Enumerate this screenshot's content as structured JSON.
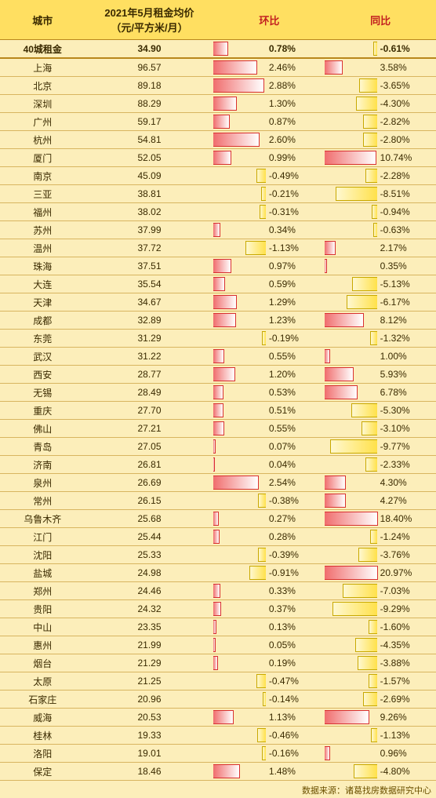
{
  "rent_table": {
    "background_color": "#fceeba",
    "header_bg": "#ffdf61",
    "header_color": "#c22020",
    "grid_color": "#d8b560",
    "pos_bar_color": "#f06d6d",
    "neg_bar_color": "#ffe14a",
    "fontsize": 12,
    "header_fontsize": 13,
    "columns": {
      "city": "城市",
      "price": "2021年5月租金均价\n（元/平方米/月）",
      "mom": "环比",
      "yoy": "同比"
    },
    "summary": {
      "city": "40城租金",
      "price": "34.90",
      "mom": 0.78,
      "yoy": -0.61
    },
    "mom_scale": 3.0,
    "yoy_scale": 11.0,
    "rows": [
      {
        "city": "上海",
        "price": "96.57",
        "mom": 2.46,
        "yoy": 3.58
      },
      {
        "city": "北京",
        "price": "89.18",
        "mom": 2.88,
        "yoy": -3.65
      },
      {
        "city": "深圳",
        "price": "88.29",
        "mom": 1.3,
        "yoy": -4.3
      },
      {
        "city": "广州",
        "price": "59.17",
        "mom": 0.87,
        "yoy": -2.82
      },
      {
        "city": "杭州",
        "price": "54.81",
        "mom": 2.6,
        "yoy": -2.8
      },
      {
        "city": "厦门",
        "price": "52.05",
        "mom": 0.99,
        "yoy": 10.74
      },
      {
        "city": "南京",
        "price": "45.09",
        "mom": -0.49,
        "yoy": -2.28
      },
      {
        "city": "三亚",
        "price": "38.81",
        "mom": -0.21,
        "yoy": -8.51
      },
      {
        "city": "福州",
        "price": "38.02",
        "mom": -0.31,
        "yoy": -0.94
      },
      {
        "city": "苏州",
        "price": "37.99",
        "mom": 0.34,
        "yoy": -0.63
      },
      {
        "city": "温州",
        "price": "37.72",
        "mom": -1.13,
        "yoy": 2.17
      },
      {
        "city": "珠海",
        "price": "37.51",
        "mom": 0.97,
        "yoy": 0.35
      },
      {
        "city": "大连",
        "price": "35.54",
        "mom": 0.59,
        "yoy": -5.13
      },
      {
        "city": "天津",
        "price": "34.67",
        "mom": 1.29,
        "yoy": -6.17
      },
      {
        "city": "成都",
        "price": "32.89",
        "mom": 1.23,
        "yoy": 8.12
      },
      {
        "city": "东莞",
        "price": "31.29",
        "mom": -0.19,
        "yoy": -1.32
      },
      {
        "city": "武汉",
        "price": "31.22",
        "mom": 0.55,
        "yoy": 1.0
      },
      {
        "city": "西安",
        "price": "28.77",
        "mom": 1.2,
        "yoy": 5.93
      },
      {
        "city": "无锡",
        "price": "28.49",
        "mom": 0.53,
        "yoy": 6.78
      },
      {
        "city": "重庆",
        "price": "27.70",
        "mom": 0.51,
        "yoy": -5.3
      },
      {
        "city": "佛山",
        "price": "27.21",
        "mom": 0.55,
        "yoy": -3.1
      },
      {
        "city": "青岛",
        "price": "27.05",
        "mom": 0.07,
        "yoy": -9.77
      },
      {
        "city": "济南",
        "price": "26.81",
        "mom": 0.04,
        "yoy": -2.33
      },
      {
        "city": "泉州",
        "price": "26.69",
        "mom": 2.54,
        "yoy": 4.3
      },
      {
        "city": "常州",
        "price": "26.15",
        "mom": -0.38,
        "yoy": 4.27
      },
      {
        "city": "乌鲁木齐",
        "price": "25.68",
        "mom": 0.27,
        "yoy": 18.4
      },
      {
        "city": "江门",
        "price": "25.44",
        "mom": 0.28,
        "yoy": -1.24
      },
      {
        "city": "沈阳",
        "price": "25.33",
        "mom": -0.39,
        "yoy": -3.76
      },
      {
        "city": "盐城",
        "price": "24.98",
        "mom": -0.91,
        "yoy": 20.97
      },
      {
        "city": "郑州",
        "price": "24.46",
        "mom": 0.33,
        "yoy": -7.03
      },
      {
        "city": "贵阳",
        "price": "24.32",
        "mom": 0.37,
        "yoy": -9.29
      },
      {
        "city": "中山",
        "price": "23.35",
        "mom": 0.13,
        "yoy": -1.6
      },
      {
        "city": "惠州",
        "price": "21.99",
        "mom": 0.05,
        "yoy": -4.35
      },
      {
        "city": "烟台",
        "price": "21.29",
        "mom": 0.19,
        "yoy": -3.88
      },
      {
        "city": "太原",
        "price": "21.25",
        "mom": -0.47,
        "yoy": -1.57
      },
      {
        "city": "石家庄",
        "price": "20.96",
        "mom": -0.14,
        "yoy": -2.69
      },
      {
        "city": "威海",
        "price": "20.53",
        "mom": 1.13,
        "yoy": 9.26
      },
      {
        "city": "桂林",
        "price": "19.33",
        "mom": -0.46,
        "yoy": -1.13
      },
      {
        "city": "洛阳",
        "price": "19.01",
        "mom": -0.16,
        "yoy": 0.96
      },
      {
        "city": "保定",
        "price": "18.46",
        "mom": 1.48,
        "yoy": -4.8
      }
    ],
    "footer": "数据来源：诸葛找房数据研究中心"
  }
}
